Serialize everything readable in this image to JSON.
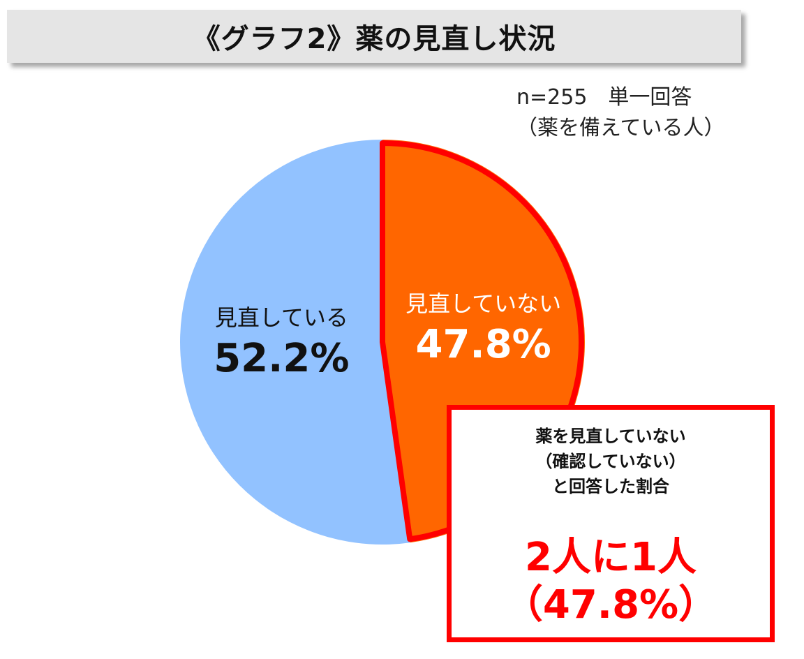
{
  "header": {
    "title": "《グラフ2》薬の見直し状況"
  },
  "note": {
    "line1": "n=255　単一回答",
    "line2": "（薬を備えている人）"
  },
  "chart_data": {
    "type": "pie",
    "title": "《グラフ2》薬の見直し状況",
    "slices": [
      {
        "label": "見直していない",
        "value": 47.8,
        "display": "47.8%",
        "color": "#ff6600",
        "label_color": "#ffffff",
        "highlighted": true
      },
      {
        "label": "見直している",
        "value": 52.2,
        "display": "52.2%",
        "color": "#92c2ff",
        "label_color": "#111111",
        "highlighted": false
      }
    ],
    "sample_size": 255,
    "answer_type": "単一回答"
  },
  "callout": {
    "lines": [
      "薬を見直していない",
      "（確認していない）",
      "と回答した割合"
    ],
    "big_line1": "2人に1人",
    "big_line2": "（47.8%）",
    "border_color": "#ff0000"
  }
}
